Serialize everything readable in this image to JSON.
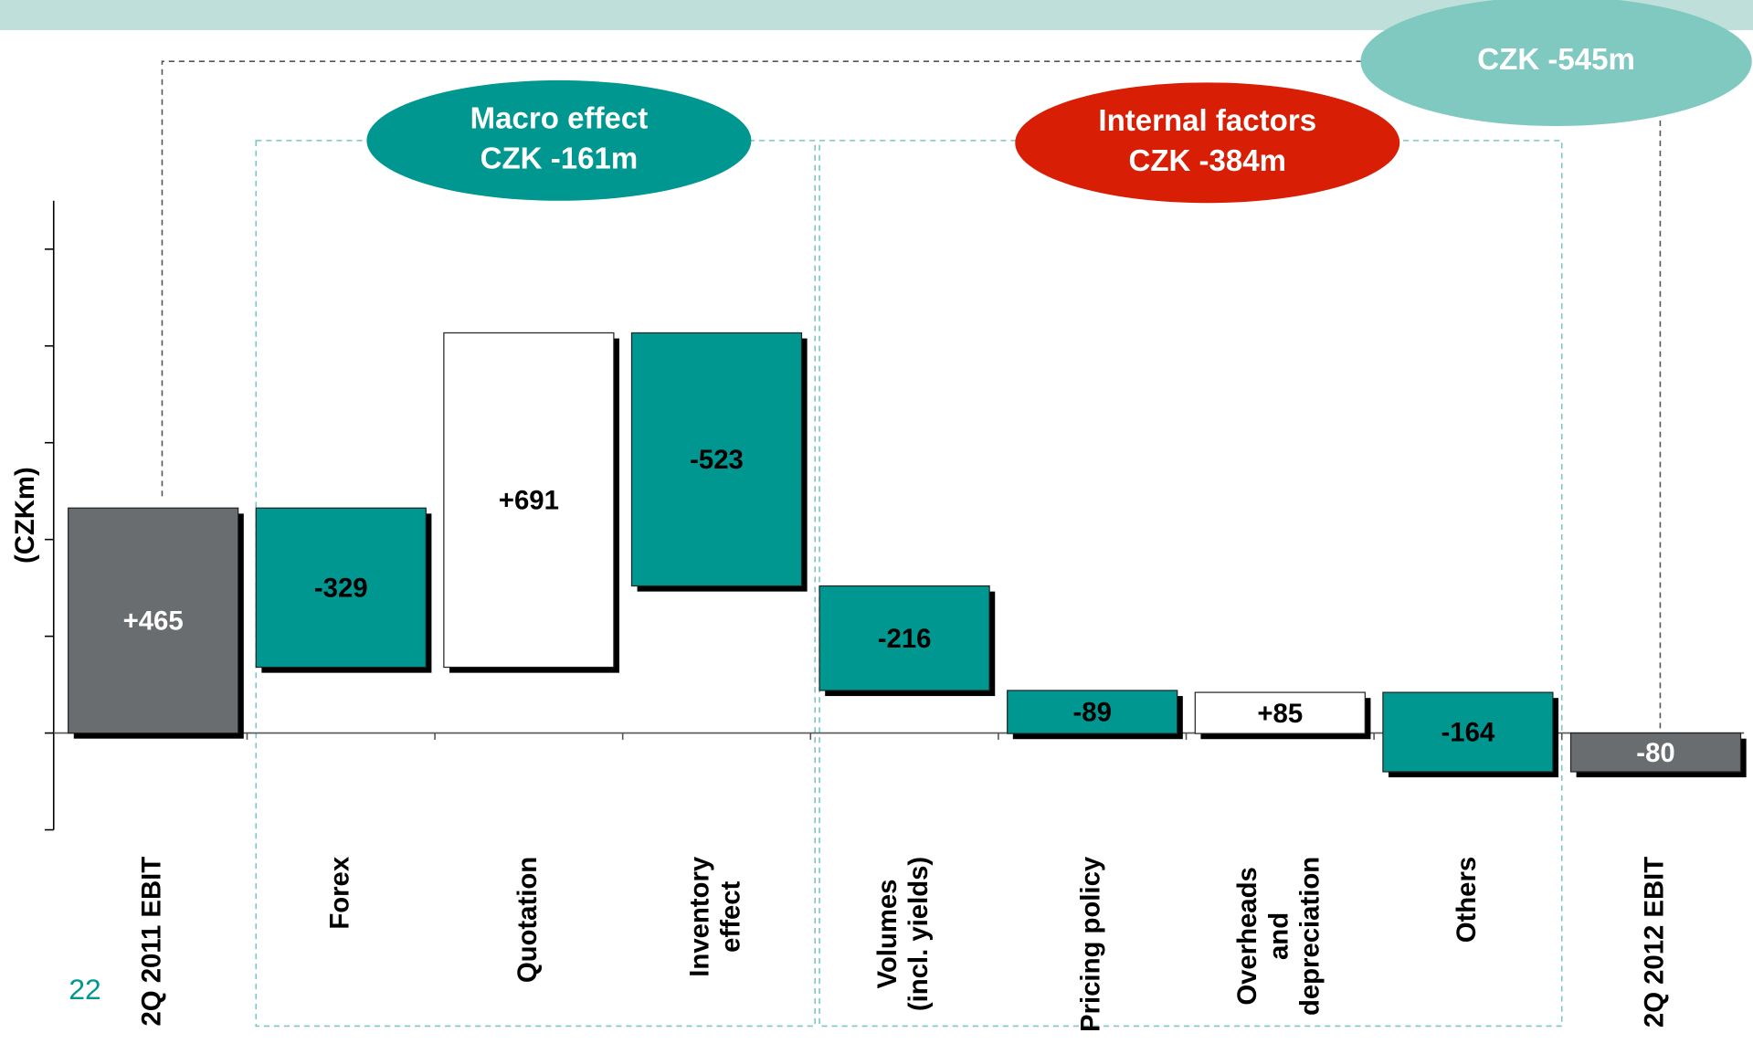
{
  "chart_data": {
    "type": "waterfall",
    "y_label": "(CZKm)",
    "categories": [
      "2Q 2011 EBIT",
      "Forex",
      "Quotation",
      "Inventory\neffect",
      "Volumes\n(incl. yields)",
      "Pricing policy",
      "Overheads\nand\ndepreciation",
      "Others",
      "2Q 2012 EBIT"
    ],
    "values": [
      465,
      -329,
      691,
      -523,
      -216,
      -89,
      85,
      -164,
      -80
    ],
    "value_labels": [
      "+465",
      "-329",
      "+691",
      "-523",
      "-216",
      "-89",
      "+85",
      "-164",
      "-80"
    ],
    "colors": [
      "#6a6d6f",
      "#009790",
      "#ffffff",
      "#009790",
      "#009790",
      "#009790",
      "#ffffff",
      "#009790",
      "#6a6d6f"
    ],
    "label_colors": [
      "#ffffff",
      "#000000",
      "#000000",
      "#000000",
      "#000000",
      "#000000",
      "#000000",
      "#000000",
      "#ffffff"
    ],
    "ylim": [
      -200,
      1100
    ],
    "yticks": [
      -200,
      0,
      200,
      400,
      600,
      800,
      1000
    ],
    "annotations": [
      [
        "Macro effect",
        "CZK -161m"
      ],
      [
        "Internal factors",
        "CZK -384m"
      ],
      [
        "CZK -545m"
      ]
    ]
  },
  "page_number": "22"
}
